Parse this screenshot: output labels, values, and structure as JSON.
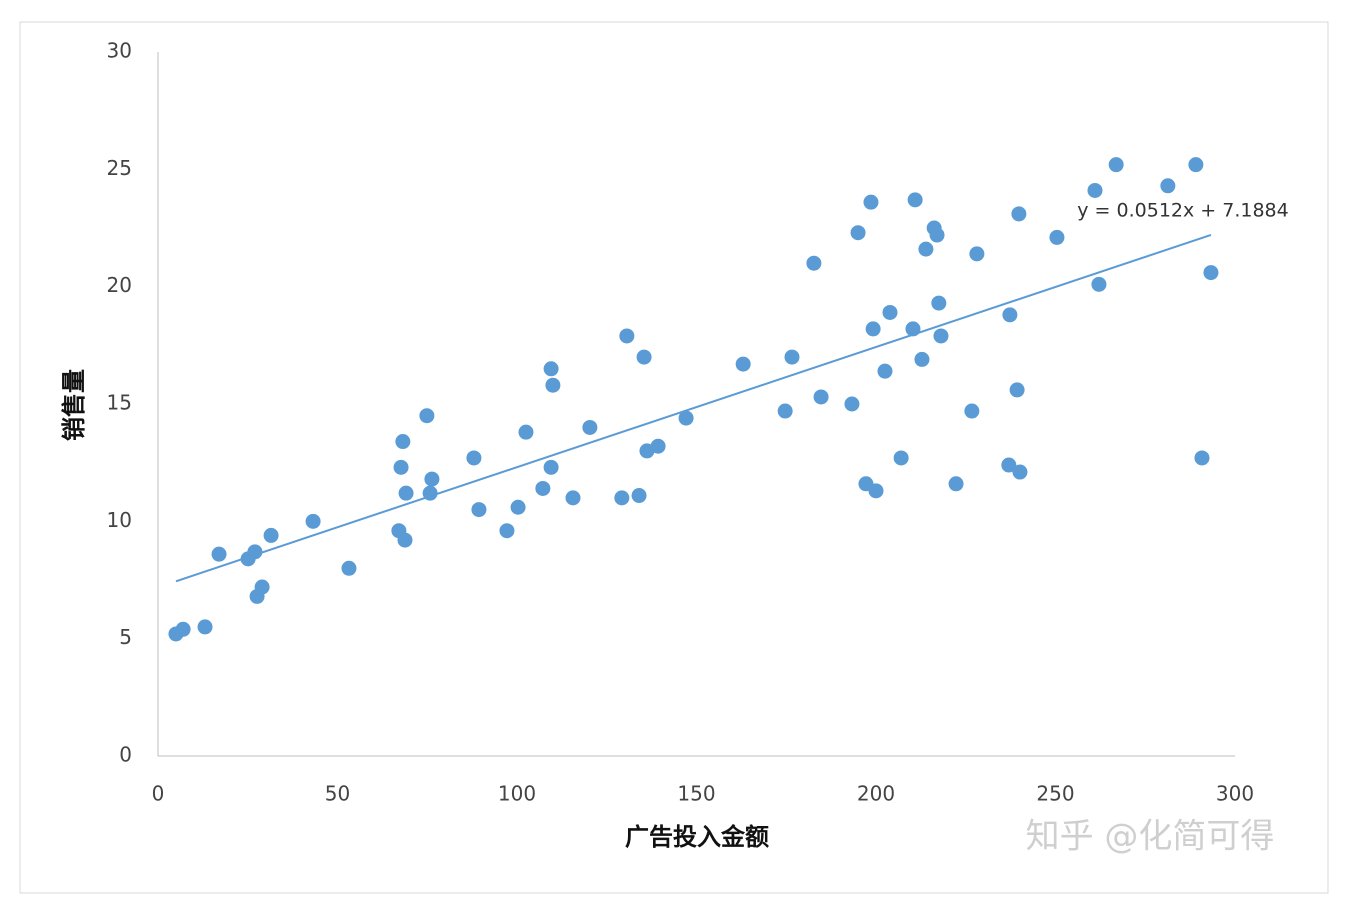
{
  "chart_data": {
    "type": "scatter",
    "x_label": "广告投入金额",
    "y_label": "销售量",
    "x": [
      5.0,
      7.0,
      13.1,
      17.0,
      25.1,
      27.0,
      27.6,
      29.0,
      31.5,
      43.2,
      53.2,
      67.1,
      68.8,
      67.7,
      68.2,
      69.1,
      74.9,
      75.8,
      76.3,
      88.0,
      89.4,
      97.2,
      100.3,
      102.5,
      107.2,
      109.5,
      110.0,
      109.5,
      115.6,
      120.3,
      129.2,
      130.6,
      134.0,
      135.4,
      136.2,
      139.3,
      147.1,
      163.0,
      174.7,
      176.6,
      182.7,
      184.7,
      193.3,
      195.0,
      197.2,
      198.6,
      199.2,
      200.0,
      202.5,
      203.9,
      207.0,
      210.3,
      210.9,
      212.8,
      213.9,
      216.2,
      217.0,
      217.5,
      218.1,
      222.3,
      226.7,
      228.1,
      237.0,
      237.3,
      239.3,
      239.8,
      240.1,
      250.4,
      261.0,
      262.1,
      266.9,
      281.3,
      289.1,
      290.8,
      293.3
    ],
    "values": [
      5.2,
      5.4,
      5.5,
      8.6,
      8.4,
      8.7,
      6.8,
      7.2,
      9.4,
      10.0,
      8.0,
      9.6,
      9.2,
      12.3,
      13.4,
      11.2,
      14.5,
      11.2,
      11.8,
      12.7,
      10.5,
      9.6,
      10.6,
      13.8,
      11.4,
      16.5,
      15.8,
      12.3,
      11.0,
      14.0,
      11.0,
      17.9,
      11.1,
      17.0,
      13.0,
      13.2,
      14.4,
      16.7,
      14.7,
      17.0,
      21.0,
      15.3,
      15.0,
      22.3,
      11.6,
      23.6,
      18.2,
      11.3,
      16.4,
      18.9,
      12.7,
      18.2,
      23.7,
      16.9,
      21.6,
      22.5,
      22.2,
      19.3,
      17.9,
      11.6,
      14.7,
      21.4,
      12.4,
      18.8,
      15.6,
      23.1,
      12.1,
      22.1,
      24.1,
      20.1,
      25.2,
      24.3,
      25.2,
      12.7,
      20.6
    ],
    "color": "#5b9bd5",
    "xlim": [
      0,
      300
    ],
    "xticks": [
      0,
      50,
      100,
      150,
      200,
      250,
      300
    ],
    "ylim": [
      0,
      30
    ],
    "yticks": [
      0,
      5,
      10,
      15,
      20,
      25,
      30
    ],
    "grid": false,
    "trendline": {
      "slope": 0.0512,
      "intercept": 7.1884,
      "label": "y = 0.0512x + 7.1884"
    },
    "watermark": "知乎 @化简可得"
  }
}
